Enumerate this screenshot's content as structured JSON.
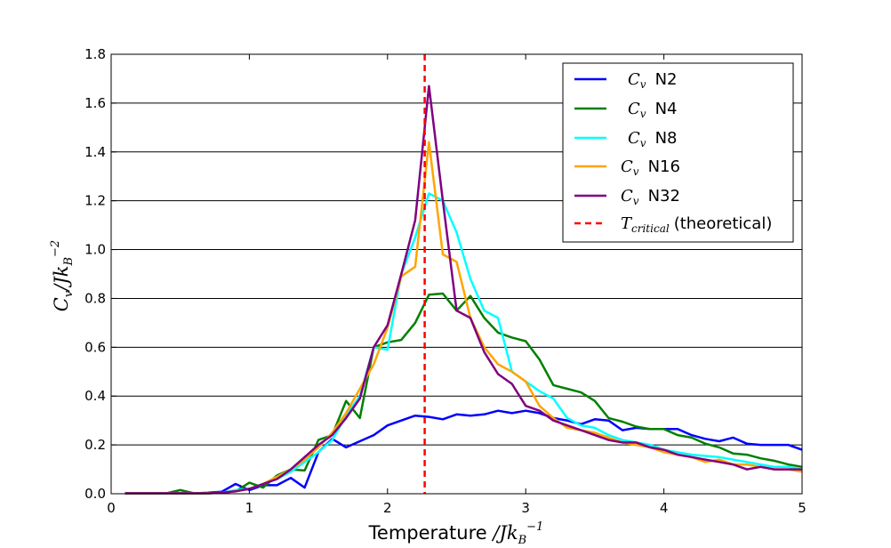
{
  "chart_data": {
    "type": "line",
    "xlabel": "Temperature /Jk_B^{-1}",
    "ylabel": "C_v/Jk_B^{-2}",
    "xlim": [
      0,
      5
    ],
    "ylim": [
      0,
      1.8
    ],
    "x_ticks": [
      "0",
      "1",
      "2",
      "3",
      "4",
      "5"
    ],
    "y_ticks": [
      "0.0",
      "0.2",
      "0.4",
      "0.6",
      "0.8",
      "1.0",
      "1.2",
      "1.4",
      "1.6",
      "1.8"
    ],
    "grid": "horizontal",
    "legend_position": "top-right",
    "critical_line": {
      "name": "T_critical (theoretical)",
      "x": 2.269,
      "color": "#ff0000",
      "style": "dashed"
    },
    "series": [
      {
        "name": "C_v N2",
        "color": "#0000ff",
        "x": [
          0.1,
          0.2,
          0.3,
          0.4,
          0.5,
          0.6,
          0.7,
          0.8,
          0.9,
          1.0,
          1.1,
          1.2,
          1.3,
          1.4,
          1.5,
          1.6,
          1.7,
          1.8,
          1.9,
          2.0,
          2.1,
          2.2,
          2.3,
          2.4,
          2.5,
          2.6,
          2.7,
          2.8,
          2.9,
          3.0,
          3.1,
          3.2,
          3.3,
          3.4,
          3.5,
          3.6,
          3.7,
          3.8,
          3.9,
          4.0,
          4.1,
          4.2,
          4.3,
          4.4,
          4.5,
          4.6,
          4.7,
          4.8,
          4.9,
          5.0
        ],
        "y": [
          0.002,
          0.002,
          0.002,
          0.002,
          0.002,
          0.002,
          0.004,
          0.008,
          0.04,
          0.015,
          0.035,
          0.035,
          0.065,
          0.025,
          0.17,
          0.225,
          0.19,
          0.215,
          0.24,
          0.28,
          0.3,
          0.32,
          0.315,
          0.305,
          0.325,
          0.32,
          0.325,
          0.34,
          0.33,
          0.34,
          0.33,
          0.31,
          0.3,
          0.285,
          0.305,
          0.3,
          0.26,
          0.27,
          0.265,
          0.265,
          0.265,
          0.24,
          0.225,
          0.215,
          0.23,
          0.205,
          0.2,
          0.2,
          0.2,
          0.18
        ]
      },
      {
        "name": "C_v N4",
        "color": "#008000",
        "x": [
          0.1,
          0.2,
          0.3,
          0.4,
          0.5,
          0.6,
          0.7,
          0.8,
          0.9,
          1.0,
          1.1,
          1.2,
          1.3,
          1.4,
          1.5,
          1.6,
          1.7,
          1.8,
          1.9,
          2.0,
          2.1,
          2.2,
          2.3,
          2.4,
          2.5,
          2.6,
          2.7,
          2.8,
          2.9,
          3.0,
          3.1,
          3.2,
          3.3,
          3.4,
          3.5,
          3.6,
          3.7,
          3.8,
          3.9,
          4.0,
          4.1,
          4.2,
          4.3,
          4.4,
          4.5,
          4.6,
          4.7,
          4.8,
          4.9,
          5.0
        ],
        "y": [
          0.002,
          0.002,
          0.002,
          0.002,
          0.015,
          0.002,
          0.002,
          0.004,
          0.01,
          0.045,
          0.025,
          0.075,
          0.1,
          0.095,
          0.22,
          0.24,
          0.38,
          0.31,
          0.6,
          0.62,
          0.63,
          0.7,
          0.815,
          0.82,
          0.75,
          0.81,
          0.72,
          0.66,
          0.64,
          0.625,
          0.55,
          0.445,
          0.43,
          0.415,
          0.38,
          0.31,
          0.295,
          0.275,
          0.265,
          0.265,
          0.24,
          0.23,
          0.205,
          0.19,
          0.165,
          0.16,
          0.145,
          0.135,
          0.12,
          0.11
        ]
      },
      {
        "name": "C_v N8",
        "color": "#00ffff",
        "x": [
          0.1,
          0.2,
          0.3,
          0.4,
          0.5,
          0.6,
          0.7,
          0.8,
          0.9,
          1.0,
          1.1,
          1.2,
          1.3,
          1.4,
          1.5,
          1.6,
          1.7,
          1.8,
          1.9,
          2.0,
          2.1,
          2.2,
          2.3,
          2.4,
          2.5,
          2.6,
          2.7,
          2.8,
          2.9,
          3.0,
          3.1,
          3.2,
          3.3,
          3.4,
          3.5,
          3.6,
          3.7,
          3.8,
          3.9,
          4.0,
          4.1,
          4.2,
          4.3,
          4.4,
          4.5,
          4.6,
          4.7,
          4.8,
          4.9,
          5.0
        ],
        "y": [
          0.002,
          0.002,
          0.002,
          0.002,
          0.002,
          0.002,
          0.002,
          0.004,
          0.015,
          0.02,
          0.04,
          0.06,
          0.09,
          0.13,
          0.17,
          0.22,
          0.32,
          0.4,
          0.6,
          0.59,
          0.9,
          1.05,
          1.23,
          1.2,
          1.07,
          0.88,
          0.75,
          0.72,
          0.5,
          0.46,
          0.42,
          0.39,
          0.31,
          0.28,
          0.27,
          0.24,
          0.22,
          0.21,
          0.2,
          0.18,
          0.17,
          0.16,
          0.155,
          0.15,
          0.14,
          0.13,
          0.12,
          0.11,
          0.11,
          0.1
        ]
      },
      {
        "name": "C_v N16",
        "color": "#ffa500",
        "x": [
          0.1,
          0.2,
          0.3,
          0.4,
          0.5,
          0.6,
          0.7,
          0.8,
          0.9,
          1.0,
          1.1,
          1.2,
          1.3,
          1.4,
          1.5,
          1.6,
          1.7,
          1.8,
          1.9,
          2.0,
          2.1,
          2.2,
          2.3,
          2.4,
          2.5,
          2.6,
          2.7,
          2.8,
          2.9,
          3.0,
          3.1,
          3.2,
          3.3,
          3.4,
          3.5,
          3.6,
          3.7,
          3.8,
          3.9,
          4.0,
          4.1,
          4.2,
          4.3,
          4.4,
          4.5,
          4.6,
          4.7,
          4.8,
          4.9,
          5.0
        ],
        "y": [
          0.002,
          0.002,
          0.002,
          0.002,
          0.002,
          0.002,
          0.002,
          0.004,
          0.01,
          0.02,
          0.04,
          0.07,
          0.1,
          0.14,
          0.19,
          0.25,
          0.33,
          0.43,
          0.53,
          0.68,
          0.89,
          0.93,
          1.44,
          0.98,
          0.95,
          0.72,
          0.6,
          0.53,
          0.5,
          0.46,
          0.36,
          0.31,
          0.27,
          0.26,
          0.25,
          0.23,
          0.21,
          0.2,
          0.19,
          0.17,
          0.16,
          0.15,
          0.13,
          0.14,
          0.12,
          0.12,
          0.11,
          0.1,
          0.1,
          0.09
        ]
      },
      {
        "name": "C_v N32",
        "color": "#800080",
        "x": [
          0.1,
          0.2,
          0.3,
          0.4,
          0.5,
          0.6,
          0.7,
          0.8,
          0.9,
          1.0,
          1.1,
          1.2,
          1.3,
          1.4,
          1.5,
          1.6,
          1.7,
          1.8,
          1.9,
          2.0,
          2.1,
          2.2,
          2.3,
          2.4,
          2.5,
          2.6,
          2.7,
          2.8,
          2.9,
          3.0,
          3.1,
          3.2,
          3.3,
          3.4,
          3.5,
          3.6,
          3.7,
          3.8,
          3.9,
          4.0,
          4.1,
          4.2,
          4.3,
          4.4,
          4.5,
          4.6,
          4.7,
          4.8,
          4.9,
          5.0
        ],
        "y": [
          0.002,
          0.002,
          0.002,
          0.002,
          0.002,
          0.002,
          0.002,
          0.004,
          0.01,
          0.02,
          0.04,
          0.06,
          0.1,
          0.15,
          0.2,
          0.24,
          0.31,
          0.39,
          0.6,
          0.69,
          0.9,
          1.12,
          1.67,
          1.2,
          0.75,
          0.72,
          0.58,
          0.49,
          0.45,
          0.36,
          0.34,
          0.3,
          0.28,
          0.26,
          0.24,
          0.22,
          0.21,
          0.21,
          0.19,
          0.18,
          0.16,
          0.15,
          0.14,
          0.13,
          0.12,
          0.1,
          0.11,
          0.1,
          0.1,
          0.1
        ]
      }
    ]
  }
}
